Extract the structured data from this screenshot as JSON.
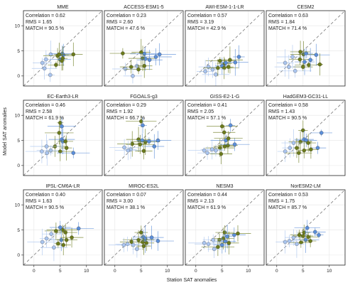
{
  "figure": {
    "xlabel": "Station SAT anomalies",
    "ylabel": "Model SAT anomalies",
    "xticks": [
      "0",
      "5",
      "10"
    ],
    "yticks": [
      "0",
      "5",
      "10"
    ],
    "colors": {
      "dark": "#6b7a1c",
      "light": "#a9c4ee",
      "mid": "#5b8ed8",
      "grid": "#e6e6e6",
      "frame": "#222222"
    }
  },
  "chart_data": {
    "type": "scatter",
    "xlim": [
      -2,
      13
    ],
    "ylim": [
      -2,
      13
    ],
    "grid": true,
    "reference_line": "1:1 dashed diagonal",
    "panels": [
      {
        "title": "MME",
        "stats": [
          "Correlation = 0.62",
          "RMS = 1.65",
          "MATCH = 90.5 %"
        ],
        "points": [
          [
            2.3,
            3.3,
            "l"
          ],
          [
            3.2,
            4.3,
            "l"
          ],
          [
            4.5,
            4.0,
            "d"
          ],
          [
            5.0,
            3.3,
            "m"
          ],
          [
            5.6,
            4.2,
            "m"
          ],
          [
            5.4,
            4.4,
            "m"
          ],
          [
            7.5,
            4.3,
            "d"
          ],
          [
            5.5,
            3.5,
            "d"
          ],
          [
            1.6,
            2.6,
            "l"
          ],
          [
            5.3,
            3.0,
            "d"
          ],
          [
            4.2,
            2.2,
            "d"
          ],
          [
            2.0,
            1.5,
            "l"
          ],
          [
            3.1,
            0.2,
            "l"
          ],
          [
            4.8,
            4.3,
            "d"
          ]
        ]
      },
      {
        "title": "ACCESS-ESM1-5",
        "stats": [
          "Correlation = 0.23",
          "RMS = 2.60",
          "MATCH = 47.6 %"
        ],
        "points": [
          [
            1.5,
            4.5,
            "d"
          ],
          [
            5.0,
            4.7,
            "d"
          ],
          [
            5.6,
            4.4,
            "m"
          ],
          [
            5.3,
            3.5,
            "d"
          ],
          [
            5.8,
            3.4,
            "m"
          ],
          [
            3.1,
            1.8,
            "d"
          ],
          [
            4.2,
            2.0,
            "l"
          ],
          [
            2.0,
            1.4,
            "l"
          ],
          [
            5.6,
            2.0,
            "d"
          ],
          [
            4.5,
            1.3,
            "d"
          ],
          [
            7.8,
            3.8,
            "m"
          ],
          [
            6.6,
            3.2,
            "m"
          ],
          [
            3.4,
            0.0,
            "l"
          ],
          [
            8.5,
            4.3,
            "m"
          ]
        ]
      },
      {
        "title": "AWI-ESM-1-1-LR",
        "stats": [
          "Correlation = 0.57",
          "RMS = 3.19",
          "MATCH = 42.9 %"
        ],
        "points": [
          [
            4.6,
            3.0,
            "d"
          ],
          [
            5.5,
            2.5,
            "d"
          ],
          [
            5.7,
            2.6,
            "m"
          ],
          [
            5.0,
            2.0,
            "m"
          ],
          [
            5.4,
            1.6,
            "d"
          ],
          [
            6.2,
            1.8,
            "d"
          ],
          [
            2.4,
            1.8,
            "l"
          ],
          [
            3.2,
            1.3,
            "l"
          ],
          [
            1.8,
            0.9,
            "l"
          ],
          [
            7.5,
            2.7,
            "m"
          ],
          [
            3.8,
            0.3,
            "l"
          ],
          [
            8.2,
            3.8,
            "m"
          ],
          [
            4.2,
            1.6,
            "d"
          ],
          [
            6.5,
            3.2,
            "d"
          ]
        ]
      },
      {
        "title": "CESM2",
        "stats": [
          "Correlation = 0.63",
          "RMS = 1.84",
          "MATCH = 71.4 %"
        ],
        "points": [
          [
            5.1,
            4.3,
            "d"
          ],
          [
            5.6,
            4.5,
            "m"
          ],
          [
            4.4,
            3.3,
            "d"
          ],
          [
            5.3,
            2.8,
            "m"
          ],
          [
            6.1,
            2.2,
            "d"
          ],
          [
            3.0,
            3.8,
            "l"
          ],
          [
            2.3,
            1.8,
            "l"
          ],
          [
            7.5,
            4.2,
            "m"
          ],
          [
            5.0,
            1.8,
            "d"
          ],
          [
            3.5,
            1.0,
            "l"
          ],
          [
            4.5,
            4.8,
            "d"
          ],
          [
            6.4,
            3.2,
            "m"
          ],
          [
            1.6,
            2.6,
            "l"
          ],
          [
            8.2,
            2.3,
            "d"
          ]
        ]
      },
      {
        "title": "EC-Earth3-LR",
        "stats": [
          "Correlation = 0.46",
          "RMS = 2.58",
          "MATCH = 61.9 %"
        ],
        "points": [
          [
            5.0,
            8.5,
            "d"
          ],
          [
            5.3,
            7.8,
            "m"
          ],
          [
            4.8,
            6.5,
            "d"
          ],
          [
            5.3,
            5.2,
            "m"
          ],
          [
            5.5,
            4.8,
            "m"
          ],
          [
            6.0,
            4.8,
            "d"
          ],
          [
            4.0,
            3.8,
            "d"
          ],
          [
            3.2,
            3.0,
            "l"
          ],
          [
            2.4,
            3.8,
            "l"
          ],
          [
            5.0,
            2.8,
            "d"
          ],
          [
            1.5,
            2.8,
            "l"
          ],
          [
            6.2,
            3.5,
            "d"
          ],
          [
            7.5,
            2.5,
            "m"
          ],
          [
            2.5,
            2.5,
            "l"
          ]
        ]
      },
      {
        "title": "FGOALS-g3",
        "stats": [
          "Correlation = 0.29",
          "RMS = 1.92",
          "MATCH = 66.7 %"
        ],
        "points": [
          [
            5.0,
            8.8,
            "d"
          ],
          [
            5.3,
            8.0,
            "m"
          ],
          [
            4.5,
            5.2,
            "d"
          ],
          [
            5.2,
            5.0,
            "m"
          ],
          [
            5.8,
            4.7,
            "d"
          ],
          [
            6.5,
            4.8,
            "m"
          ],
          [
            4.8,
            4.2,
            "d"
          ],
          [
            3.3,
            4.3,
            "d"
          ],
          [
            3.0,
            3.2,
            "l"
          ],
          [
            1.8,
            3.6,
            "l"
          ],
          [
            7.5,
            3.8,
            "m"
          ],
          [
            2.5,
            3.0,
            "l"
          ],
          [
            5.5,
            2.9,
            "d"
          ],
          [
            8.2,
            5.0,
            "m"
          ]
        ]
      },
      {
        "title": "GISS-E2-1-G",
        "stats": [
          "Correlation = 0.41",
          "RMS = 2.05",
          "MATCH = 57.1 %"
        ],
        "points": [
          [
            5.0,
            7.8,
            "d"
          ],
          [
            6.6,
            8.0,
            "m"
          ],
          [
            5.4,
            6.6,
            "d"
          ],
          [
            5.7,
            5.0,
            "m"
          ],
          [
            5.5,
            3.8,
            "d"
          ],
          [
            6.1,
            4.0,
            "d"
          ],
          [
            4.6,
            3.5,
            "d"
          ],
          [
            3.1,
            3.2,
            "l"
          ],
          [
            2.2,
            2.5,
            "l"
          ],
          [
            4.8,
            2.3,
            "d"
          ],
          [
            7.4,
            4.2,
            "m"
          ],
          [
            1.6,
            3.0,
            "l"
          ],
          [
            3.8,
            3.0,
            "l"
          ],
          [
            6.2,
            5.4,
            "d"
          ]
        ]
      },
      {
        "title": "HadGEM3-GC31-LL",
        "stats": [
          "Correlation = 0.58",
          "RMS = 1.43",
          "MATCH = 90.5 %"
        ],
        "points": [
          [
            5.0,
            7.0,
            "d"
          ],
          [
            5.2,
            5.2,
            "m"
          ],
          [
            5.6,
            5.0,
            "m"
          ],
          [
            4.5,
            4.7,
            "d"
          ],
          [
            6.0,
            4.5,
            "d"
          ],
          [
            3.2,
            4.5,
            "l"
          ],
          [
            2.5,
            3.5,
            "l"
          ],
          [
            3.8,
            3.5,
            "d"
          ],
          [
            5.2,
            3.0,
            "d"
          ],
          [
            7.8,
            3.5,
            "m"
          ],
          [
            1.6,
            2.8,
            "l"
          ],
          [
            8.5,
            6.5,
            "m"
          ],
          [
            6.5,
            3.2,
            "d"
          ],
          [
            4.2,
            2.5,
            "d"
          ]
        ]
      },
      {
        "title": "IPSL-CM6A-LR",
        "stats": [
          "Correlation = 0.40",
          "RMS = 1.63",
          "MATCH = 90.5 %"
        ],
        "points": [
          [
            5.0,
            5.5,
            "m"
          ],
          [
            5.5,
            5.0,
            "d"
          ],
          [
            4.2,
            4.8,
            "d"
          ],
          [
            6.0,
            4.5,
            "d"
          ],
          [
            3.3,
            4.2,
            "l"
          ],
          [
            2.4,
            3.3,
            "l"
          ],
          [
            5.2,
            3.0,
            "m"
          ],
          [
            4.6,
            2.3,
            "d"
          ],
          [
            6.2,
            3.0,
            "d"
          ],
          [
            7.2,
            3.5,
            "d"
          ],
          [
            1.6,
            2.6,
            "l"
          ],
          [
            5.6,
            2.0,
            "d"
          ],
          [
            3.8,
            1.5,
            "l"
          ],
          [
            8.5,
            5.3,
            "m"
          ]
        ]
      },
      {
        "title": "MIROC-ES2L",
        "stats": [
          "Correlation = 0.07",
          "RMS = 3.00",
          "MATCH = 38.1 %"
        ],
        "points": [
          [
            5.0,
            4.5,
            "d"
          ],
          [
            5.4,
            3.6,
            "m"
          ],
          [
            5.8,
            3.2,
            "m"
          ],
          [
            5.3,
            2.6,
            "d"
          ],
          [
            6.0,
            2.4,
            "d"
          ],
          [
            3.2,
            2.6,
            "d"
          ],
          [
            4.5,
            3.0,
            "d"
          ],
          [
            2.4,
            2.2,
            "l"
          ],
          [
            3.5,
            2.0,
            "l"
          ],
          [
            5.5,
            1.8,
            "d"
          ],
          [
            7.0,
            3.5,
            "m"
          ],
          [
            1.7,
            2.0,
            "l"
          ],
          [
            4.2,
            1.2,
            "l"
          ],
          [
            8.2,
            2.8,
            "m"
          ]
        ]
      },
      {
        "title": "NESM3",
        "stats": [
          "Correlation = 0.44",
          "RMS = 2.13",
          "MATCH = 61.9 %"
        ],
        "points": [
          [
            5.5,
            4.5,
            "d"
          ],
          [
            6.0,
            3.7,
            "m"
          ],
          [
            5.2,
            3.3,
            "d"
          ],
          [
            4.5,
            3.0,
            "d"
          ],
          [
            5.6,
            2.7,
            "m"
          ],
          [
            3.3,
            3.0,
            "l"
          ],
          [
            2.4,
            2.2,
            "l"
          ],
          [
            5.0,
            2.0,
            "m"
          ],
          [
            6.3,
            2.4,
            "d"
          ],
          [
            7.3,
            4.0,
            "m"
          ],
          [
            1.6,
            2.4,
            "l"
          ],
          [
            4.2,
            1.6,
            "d"
          ],
          [
            3.5,
            1.2,
            "l"
          ],
          [
            8.0,
            4.3,
            "d"
          ]
        ]
      },
      {
        "title": "NorESM2-LM",
        "stats": [
          "Correlation = 0.53",
          "RMS = 1.75",
          "MATCH = 85.7 %"
        ],
        "points": [
          [
            5.8,
            5.4,
            "m"
          ],
          [
            5.2,
            4.5,
            "d"
          ],
          [
            4.3,
            4.0,
            "d"
          ],
          [
            6.0,
            3.6,
            "d"
          ],
          [
            5.5,
            3.0,
            "m"
          ],
          [
            3.2,
            3.5,
            "l"
          ],
          [
            2.4,
            2.8,
            "l"
          ],
          [
            4.6,
            2.5,
            "d"
          ],
          [
            7.3,
            4.6,
            "m"
          ],
          [
            1.6,
            2.6,
            "l"
          ],
          [
            6.4,
            2.8,
            "d"
          ],
          [
            5.0,
            3.8,
            "d"
          ],
          [
            3.8,
            2.2,
            "l"
          ],
          [
            8.0,
            4.0,
            "m"
          ]
        ]
      }
    ]
  }
}
